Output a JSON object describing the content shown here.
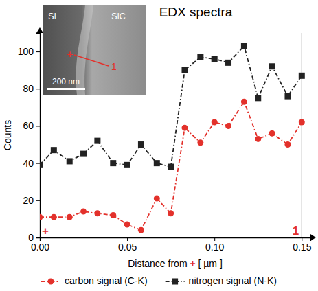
{
  "chart_data": {
    "type": "line",
    "title": "EDX spectra",
    "x_label": "Distance from + [ µm ]",
    "y_label": "Counts",
    "x": [
      0,
      0.008,
      0.017,
      0.025,
      0.033,
      0.042,
      0.05,
      0.058,
      0.067,
      0.075,
      0.083,
      0.092,
      0.1,
      0.108,
      0.117,
      0.125,
      0.133,
      0.142,
      0.15
    ],
    "series": [
      {
        "name": "carbon signal (C-K)",
        "color": "#e3312b",
        "marker": "circle",
        "line_style": "dashdot",
        "values": [
          11,
          11,
          11,
          14,
          13,
          12,
          7,
          4,
          21,
          13,
          59,
          51,
          62,
          60,
          73,
          53,
          56,
          50,
          62
        ]
      },
      {
        "name": "nitrogen signal (N-K)",
        "color": "#222222",
        "marker": "square",
        "line_style": "dashdot",
        "values": [
          39,
          47,
          41,
          45,
          52,
          40,
          39,
          50,
          40,
          38,
          90,
          97,
          96,
          94,
          103,
          75,
          92,
          76,
          87
        ]
      }
    ],
    "xlim": [
      0,
      0.155
    ],
    "ylim": [
      0,
      110
    ],
    "xticks": [
      {
        "value": 0,
        "label": "0.00"
      },
      0.05,
      {
        "value": 0.1,
        "label": "0.10"
      },
      0.15
    ],
    "yticks": [
      0,
      20,
      40,
      60,
      80,
      100
    ],
    "vlines": [
      0.15
    ],
    "annotations": [
      {
        "text": "+",
        "x": 0,
        "y": 3
      },
      {
        "text": "1",
        "x": 0.15,
        "y": 3
      }
    ],
    "inset": {
      "labels": [
        "Si",
        "SiC"
      ],
      "scale_bar": "200 nm",
      "markers": [
        "+",
        "1"
      ]
    },
    "grid": false,
    "legend": "bottom"
  }
}
